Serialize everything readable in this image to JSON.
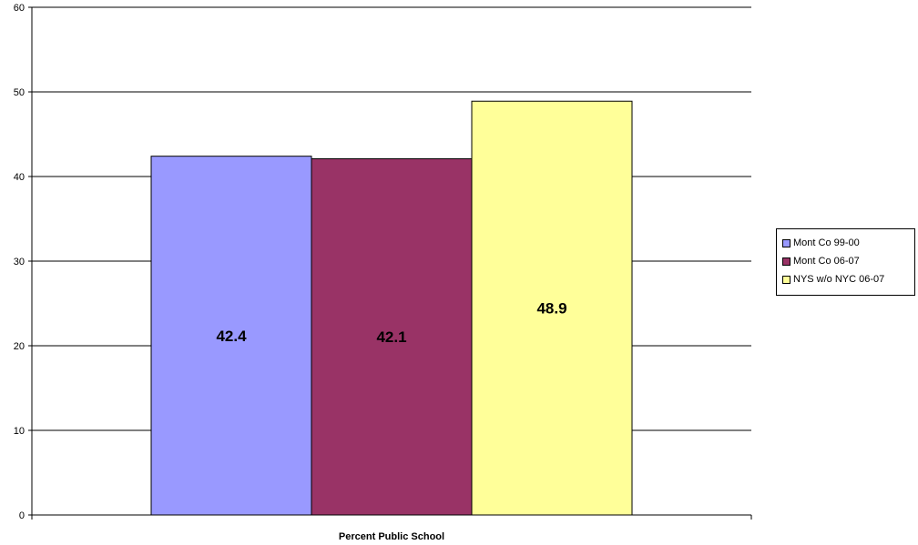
{
  "chart_data": {
    "type": "bar",
    "categories": [
      "Percent Public School"
    ],
    "series": [
      {
        "name": "Mont Co 99-00",
        "values": [
          42.4
        ],
        "color": "#9999FF"
      },
      {
        "name": "Mont Co 06-07",
        "values": [
          42.1
        ],
        "color": "#993366"
      },
      {
        "name": "NYS w/o NYC 06-07",
        "values": [
          48.9
        ],
        "color": "#FFFF99"
      }
    ],
    "data_labels": [
      "42.4",
      "42.1",
      "48.9"
    ],
    "xlabel": "Percent Public School",
    "ylim": [
      0,
      60
    ],
    "yticks": [
      0,
      10,
      20,
      30,
      40,
      50,
      60
    ],
    "grid": true,
    "legend_position": "right"
  }
}
